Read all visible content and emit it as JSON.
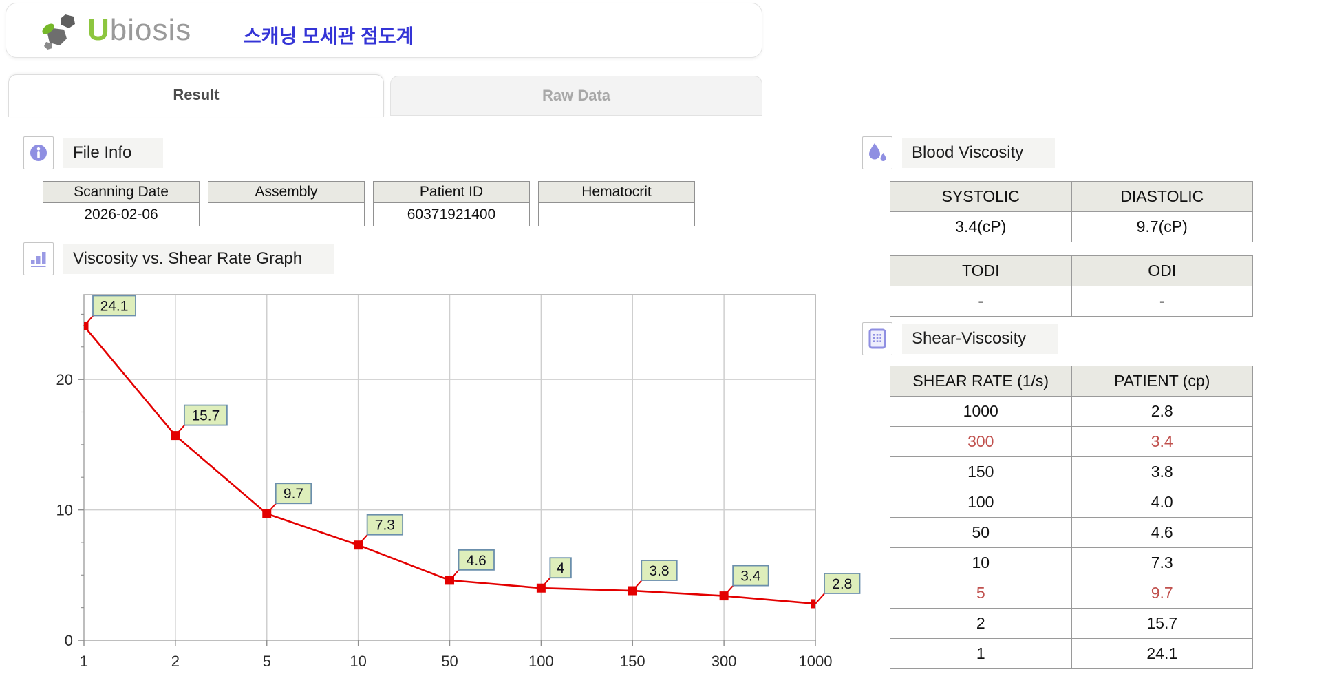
{
  "header": {
    "logo_u": "U",
    "logo_rest": "biosis",
    "title_ko": "스캐닝 모세관 점도계"
  },
  "tabs": [
    {
      "label": "Result",
      "active": true
    },
    {
      "label": "Raw Data",
      "active": false
    }
  ],
  "file_info": {
    "section_label": "File Info",
    "fields": [
      {
        "label": "Scanning Date",
        "value": "2026-02-06"
      },
      {
        "label": "Assembly",
        "value": ""
      },
      {
        "label": "Patient ID",
        "value": "60371921400"
      },
      {
        "label": "Hematocrit",
        "value": ""
      }
    ]
  },
  "graph_section": {
    "section_label": "Viscosity vs. Shear Rate Graph"
  },
  "chart_data": {
    "type": "line",
    "title": "Viscosity vs. Shear Rate Graph",
    "x_categories": [
      "1",
      "2",
      "5",
      "10",
      "50",
      "100",
      "150",
      "300",
      "1000"
    ],
    "values": [
      24.1,
      15.7,
      9.7,
      7.3,
      4.6,
      4,
      3.8,
      3.4,
      2.8
    ],
    "point_labels": [
      "24.1",
      "15.7",
      "9.7",
      "7.3",
      "4.6",
      "4",
      "3.8",
      "3.4",
      "2.8"
    ],
    "ylim": [
      0,
      26.5
    ],
    "yticks_labeled": [
      0,
      10,
      20
    ],
    "ytick_minor_step": 2.5,
    "grid": true,
    "legend": "none",
    "line_color": "#e30000",
    "marker": "square",
    "label_box_fill": "#deeebb",
    "label_box_border": "#6b8fac"
  },
  "blood_viscosity": {
    "section_label": "Blood Viscosity",
    "table1": {
      "headers": [
        "SYSTOLIC",
        "DIASTOLIC"
      ],
      "values": [
        "3.4(cP)",
        "9.7(cP)"
      ]
    },
    "table2": {
      "headers": [
        "TODI",
        "ODI"
      ],
      "values": [
        "-",
        "-"
      ]
    }
  },
  "shear_viscosity": {
    "section_label": "Shear-Viscosity",
    "headers": [
      "SHEAR RATE (1/s)",
      "PATIENT (cp)"
    ],
    "rows": [
      {
        "rate": "1000",
        "patient": "2.8",
        "highlight": false
      },
      {
        "rate": "300",
        "patient": "3.4",
        "highlight": true
      },
      {
        "rate": "150",
        "patient": "3.8",
        "highlight": false
      },
      {
        "rate": "100",
        "patient": "4.0",
        "highlight": false
      },
      {
        "rate": "50",
        "patient": "4.6",
        "highlight": false
      },
      {
        "rate": "10",
        "patient": "7.3",
        "highlight": false
      },
      {
        "rate": "5",
        "patient": "9.7",
        "highlight": true
      },
      {
        "rate": "2",
        "patient": "15.7",
        "highlight": false
      },
      {
        "rate": "1",
        "patient": "24.1",
        "highlight": false
      }
    ]
  },
  "colors": {
    "accent_blue_title": "#3434d6",
    "logo_green": "#8dc63f",
    "icon_purple": "#8f8fe2",
    "highlight_red": "#c0504d",
    "chart_line_red": "#e30000",
    "table_header_bg": "#e9e9e3",
    "section_label_bg": "#f4f4f2"
  }
}
